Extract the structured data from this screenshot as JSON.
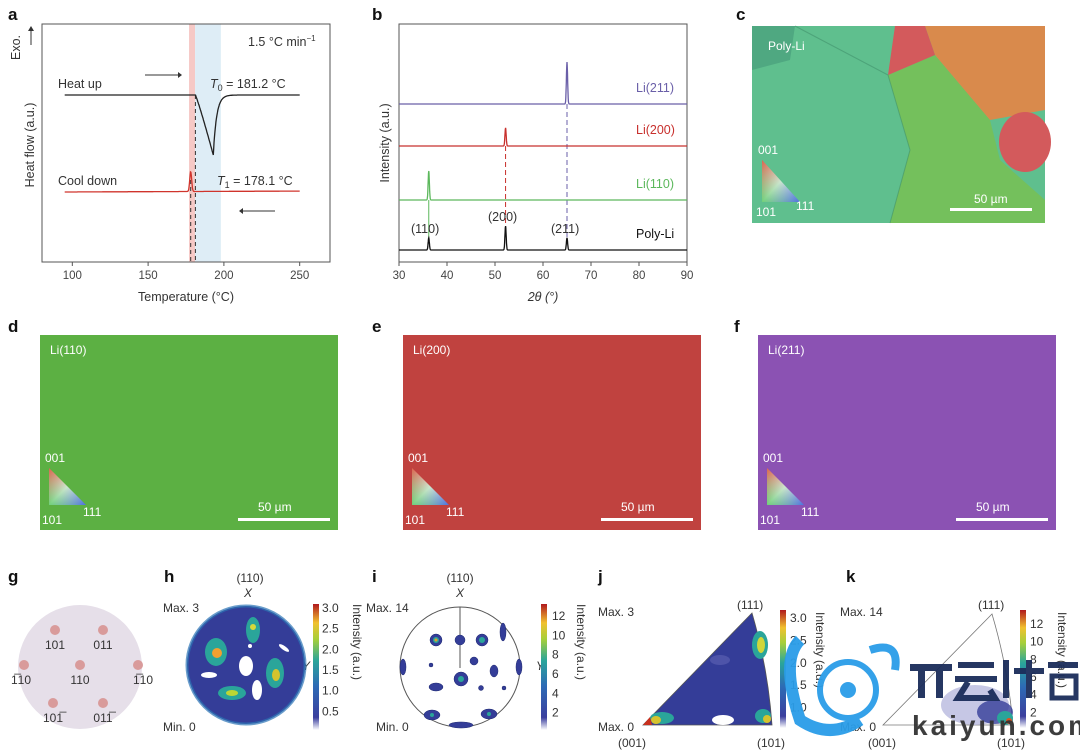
{
  "panels": {
    "a": {
      "label": "a",
      "rate": "1.5 °C min",
      "rate_sup": "−1",
      "exo": "Exo.",
      "heat_up": "Heat up",
      "cool_down": "Cool down",
      "T0": {
        "symbol": "T",
        "sub": "0",
        "value": " = 181.2 °C"
      },
      "T1": {
        "symbol": "T",
        "sub": "1",
        "value": " = 178.1 °C"
      }
    },
    "b": {
      "label": "b",
      "peak_labels": [
        "(110)",
        "(200)",
        "(211)"
      ]
    },
    "c": {
      "label": "c",
      "title": "Poly-Li",
      "legend": [
        "001",
        "101",
        "111"
      ],
      "scale": "50 µm"
    },
    "d": {
      "label": "d",
      "title": "Li(110)",
      "legend": [
        "001",
        "101",
        "111"
      ],
      "scale": "50 µm",
      "color": "#5cb043"
    },
    "e": {
      "label": "e",
      "title": "Li(200)",
      "legend": [
        "001",
        "101",
        "111"
      ],
      "scale": "50 µm",
      "color": "#c0423f"
    },
    "f": {
      "label": "f",
      "title": "Li(211)",
      "legend": [
        "001",
        "101",
        "111"
      ],
      "scale": "50 µm",
      "color": "#8b52b3"
    },
    "g": {
      "label": "g",
      "poles": [
        "101",
        "011",
        "1̅10",
        "110",
        "1̅10",
        "101̅",
        "011̅"
      ]
    },
    "h": {
      "label": "h",
      "pole": "(110)",
      "axis_x": "X",
      "axis_y": "Y",
      "max": "Max. 3",
      "min": "Min. 0",
      "colorbar_ticks": [
        "3.0",
        "2.5",
        "2.0",
        "1.5",
        "1.0",
        "0.5"
      ],
      "colorbar_title": "Intensity (a.u.)"
    },
    "i": {
      "label": "i",
      "pole": "(110)",
      "axis_x": "X",
      "axis_y": "Y",
      "max": "Max. 14",
      "min": "Min. 0",
      "colorbar_ticks": [
        "12",
        "10",
        "8",
        "6",
        "4",
        "2"
      ],
      "colorbar_title": "Intensity (a.u.)"
    },
    "j": {
      "label": "j",
      "max": "Max. 3",
      "min": "Max. 0",
      "corners": [
        "(001)",
        "(101)",
        "(111)"
      ],
      "colorbar_ticks": [
        "3.0",
        "2.5",
        "2.0",
        "1.5",
        "1.0"
      ],
      "colorbar_title": "Intensity (a.u.)"
    },
    "k": {
      "label": "k",
      "max": "Max. 14",
      "min": "Max. 0",
      "corners": [
        "(001)",
        "(101)",
        "(111)"
      ],
      "colorbar_ticks": [
        "12",
        "10",
        "8",
        "6",
        "4",
        "2"
      ],
      "colorbar_title": "Intensity (a.u.)"
    }
  },
  "watermark": {
    "brand_cn": "开云体育",
    "brand_en": "kaiyun.com"
  },
  "chart_data": [
    {
      "panel": "a",
      "type": "line",
      "xlabel": "Temperature (°C)",
      "ylabel": "Heat flow (a.u.)",
      "xlim": [
        80,
        270
      ],
      "xticks": [
        100,
        150,
        200,
        250
      ],
      "grid": false,
      "shaded_bands": [
        {
          "from": 177,
          "to": 181,
          "color": "#f6c9c6"
        },
        {
          "from": 181,
          "to": 198,
          "color": "#deedf6"
        }
      ],
      "dashed_lines": [
        178.1,
        181.2
      ],
      "series": [
        {
          "name": "Heat up",
          "color": "#222222",
          "x_start": 95,
          "x_end": 250,
          "onset": 181.2,
          "minimum_at": 193,
          "relative_depth": -1.0
        },
        {
          "name": "Cool down",
          "color": "#d0342c",
          "x_start": 95,
          "x_end": 250,
          "peak_at": 178.1,
          "relative_height": 0.33
        }
      ]
    },
    {
      "panel": "b",
      "type": "line",
      "xlabel": "2θ (°)",
      "ylabel": "Intensity (a.u.)",
      "xlim": [
        30,
        90
      ],
      "xticks": [
        30,
        40,
        50,
        60,
        70,
        80,
        90
      ],
      "grid": false,
      "series": [
        {
          "name": "Li(211)",
          "color": "#6a5fa8",
          "peaks": [
            {
              "two_theta": 65.0,
              "intensity": 1.0
            }
          ]
        },
        {
          "name": "Li(200)",
          "color": "#c8302d",
          "peaks": [
            {
              "two_theta": 52.2,
              "intensity": 0.43
            }
          ]
        },
        {
          "name": "Li(110)",
          "color": "#5cb85c",
          "peaks": [
            {
              "two_theta": 36.2,
              "intensity": 0.69
            }
          ]
        },
        {
          "name": "Poly-Li",
          "color": "#111111",
          "peaks": [
            {
              "two_theta": 36.2,
              "intensity": 0.29
            },
            {
              "two_theta": 52.2,
              "intensity": 0.57
            },
            {
              "two_theta": 65.0,
              "intensity": 0.29
            }
          ]
        }
      ]
    }
  ]
}
